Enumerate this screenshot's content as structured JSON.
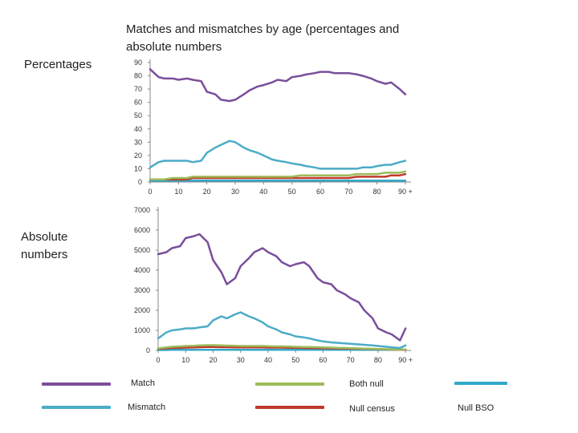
{
  "title": "Matches and mismatches by age (percentages and absolute numbers",
  "labels": {
    "percentages": "Percentages",
    "absolute": "Absolute numbers"
  },
  "legend": [
    {
      "label": "Match",
      "color": "#7a4e9b"
    },
    {
      "label": "Both null",
      "color": "#9bbb59"
    },
    {
      "label": "Null BSO",
      "color": "#31a9c9"
    },
    {
      "label": "Mismatch",
      "color": "#4bacc6"
    },
    {
      "label": "Null census",
      "color": "#c0392b"
    }
  ],
  "chart_data": [
    {
      "type": "line",
      "panel": "percentages",
      "x": [
        0,
        3,
        5,
        8,
        10,
        13,
        15,
        18,
        20,
        23,
        25,
        28,
        30,
        33,
        35,
        38,
        40,
        43,
        45,
        48,
        50,
        53,
        55,
        58,
        60,
        63,
        65,
        68,
        70,
        73,
        75,
        78,
        80,
        83,
        85,
        88,
        90
      ],
      "xticks": [
        "0",
        "10",
        "20",
        "30",
        "40",
        "50",
        "60",
        "70",
        "80",
        "90 +"
      ],
      "yticks": [
        0,
        10,
        20,
        30,
        40,
        50,
        60,
        70,
        80,
        90
      ],
      "ylim": [
        0,
        90
      ],
      "xlim": [
        0,
        92
      ],
      "series": [
        {
          "name": "Match",
          "color": "#7a4e9b",
          "values": [
            85,
            79,
            78,
            78,
            77,
            78,
            77,
            76,
            68,
            66,
            62,
            61,
            62,
            66,
            69,
            72,
            73,
            75,
            77,
            76,
            79,
            80,
            81,
            82,
            83,
            83,
            82,
            82,
            82,
            81,
            80,
            78,
            76,
            74,
            75,
            70,
            66
          ]
        },
        {
          "name": "Mismatch",
          "color": "#4bacc6",
          "values": [
            11,
            15,
            16,
            16,
            16,
            16,
            15,
            16,
            22,
            26,
            28,
            31,
            30,
            26,
            24,
            22,
            20,
            17,
            16,
            15,
            14,
            13,
            12,
            11,
            10,
            10,
            10,
            10,
            10,
            10,
            11,
            11,
            12,
            13,
            13,
            15,
            16
          ]
        },
        {
          "name": "Both null",
          "color": "#9bbb59",
          "values": [
            2,
            2,
            2,
            3,
            3,
            3,
            4,
            4,
            4,
            4,
            4,
            4,
            4,
            4,
            4,
            4,
            4,
            4,
            4,
            4,
            4,
            5,
            5,
            5,
            5,
            5,
            5,
            5,
            5,
            6,
            6,
            6,
            6,
            7,
            7,
            7,
            8
          ]
        },
        {
          "name": "Null census",
          "color": "#c0392b",
          "values": [
            2,
            2,
            2,
            2,
            2,
            2,
            3,
            3,
            3,
            3,
            3,
            3,
            3,
            3,
            3,
            3,
            3,
            3,
            3,
            3,
            3,
            3,
            3,
            3,
            3,
            3,
            3,
            3,
            3,
            4,
            4,
            4,
            4,
            4,
            5,
            5,
            6
          ]
        },
        {
          "name": "Null BSO",
          "color": "#31a9c9",
          "values": [
            1,
            1,
            1,
            1,
            1,
            1,
            1,
            1,
            1,
            1,
            1,
            1,
            1,
            1,
            1,
            1,
            1,
            1,
            1,
            1,
            1,
            1,
            1,
            1,
            1,
            1,
            1,
            1,
            1,
            1,
            1,
            1,
            1,
            1,
            1,
            1,
            1
          ]
        }
      ]
    },
    {
      "type": "line",
      "panel": "absolute",
      "x": [
        0,
        3,
        5,
        8,
        10,
        13,
        15,
        18,
        20,
        23,
        25,
        28,
        30,
        33,
        35,
        38,
        40,
        43,
        45,
        48,
        50,
        53,
        55,
        58,
        60,
        63,
        65,
        68,
        70,
        73,
        75,
        78,
        80,
        83,
        85,
        88,
        90
      ],
      "xticks": [
        "0",
        "10",
        "20",
        "30",
        "40",
        "50",
        "60",
        "70",
        "80",
        "90 +"
      ],
      "yticks": [
        0,
        1000,
        2000,
        3000,
        4000,
        5000,
        6000,
        7000
      ],
      "ylim": [
        0,
        7000
      ],
      "xlim": [
        0,
        92
      ],
      "series": [
        {
          "name": "Match",
          "color": "#7a4e9b",
          "values": [
            4800,
            4900,
            5100,
            5200,
            5600,
            5700,
            5800,
            5400,
            4500,
            3900,
            3300,
            3600,
            4200,
            4600,
            4900,
            5100,
            4900,
            4700,
            4400,
            4200,
            4300,
            4400,
            4200,
            3600,
            3400,
            3300,
            3000,
            2800,
            2600,
            2400,
            2000,
            1600,
            1100,
            900,
            800,
            500,
            1100
          ]
        },
        {
          "name": "Mismatch",
          "color": "#4bacc6",
          "values": [
            600,
            900,
            1000,
            1050,
            1100,
            1100,
            1150,
            1200,
            1500,
            1700,
            1600,
            1800,
            1900,
            1700,
            1600,
            1400,
            1200,
            1050,
            900,
            800,
            700,
            650,
            600,
            500,
            450,
            400,
            380,
            350,
            330,
            300,
            280,
            250,
            220,
            180,
            150,
            120,
            250
          ]
        },
        {
          "name": "Both null",
          "color": "#9bbb59",
          "values": [
            100,
            150,
            180,
            200,
            220,
            230,
            250,
            260,
            260,
            250,
            240,
            230,
            220,
            220,
            220,
            220,
            210,
            200,
            200,
            190,
            180,
            170,
            170,
            160,
            150,
            140,
            130,
            120,
            110,
            100,
            90,
            80,
            70,
            60,
            50,
            40,
            50
          ]
        },
        {
          "name": "Null census",
          "color": "#c0392b",
          "values": [
            80,
            100,
            120,
            130,
            140,
            150,
            160,
            170,
            170,
            160,
            160,
            150,
            150,
            150,
            150,
            150,
            140,
            140,
            140,
            130,
            130,
            120,
            120,
            110,
            110,
            100,
            100,
            90,
            90,
            80,
            80,
            70,
            60,
            50,
            40,
            30,
            40
          ]
        },
        {
          "name": "Null BSO",
          "color": "#31a9c9",
          "values": [
            20,
            20,
            30,
            30,
            30,
            30,
            30,
            30,
            30,
            30,
            30,
            30,
            30,
            30,
            30,
            30,
            30,
            30,
            30,
            30,
            30,
            30,
            30,
            30,
            30,
            30,
            30,
            30,
            30,
            30,
            30,
            30,
            30,
            30,
            30,
            30,
            30
          ]
        }
      ]
    }
  ]
}
